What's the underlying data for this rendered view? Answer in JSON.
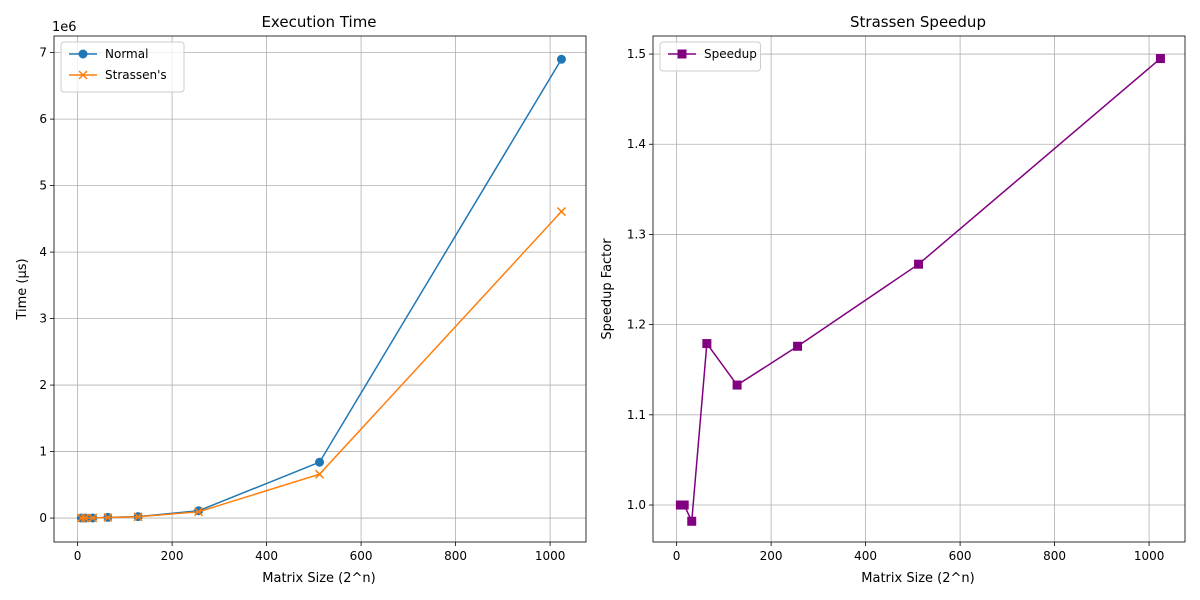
{
  "chart_data": [
    {
      "type": "line",
      "title": "Execution Time",
      "xlabel": "Matrix Size (2^n)",
      "ylabel": "Time (µs)",
      "y_offset_text": "1e6",
      "x": [
        8,
        16,
        32,
        64,
        128,
        256,
        512,
        1024
      ],
      "series": [
        {
          "name": "Normal",
          "marker": "circle",
          "color": "#1f77b4",
          "values": [
            50,
            250,
            1500,
            10000,
            22000,
            110000,
            840000,
            6900000
          ]
        },
        {
          "name": "Strassen's",
          "marker": "x",
          "color": "#ff7f0e",
          "values": [
            50,
            250,
            1500,
            8500,
            19000,
            94000,
            660000,
            4610000
          ]
        }
      ],
      "xlim": [
        -50,
        1076
      ],
      "ylim": [
        -360000,
        7250000
      ],
      "xticks": [
        0,
        200,
        400,
        600,
        800,
        1000
      ],
      "xtick_labels": [
        "0",
        "200",
        "400",
        "600",
        "800",
        "1000"
      ],
      "yticks": [
        0,
        1000000,
        2000000,
        3000000,
        4000000,
        5000000,
        6000000,
        7000000
      ],
      "ytick_labels": [
        "0",
        "1",
        "2",
        "3",
        "4",
        "5",
        "6",
        "7"
      ],
      "grid": true,
      "legend": "upper-left"
    },
    {
      "type": "line",
      "title": "Strassen Speedup",
      "xlabel": "Matrix Size (2^n)",
      "ylabel": "Speedup Factor",
      "x": [
        8,
        16,
        32,
        64,
        128,
        256,
        512,
        1024
      ],
      "series": [
        {
          "name": "Speedup",
          "marker": "square",
          "color": "#800080",
          "values": [
            1.0,
            1.0,
            0.982,
            1.179,
            1.133,
            1.176,
            1.267,
            1.495
          ]
        }
      ],
      "xlim": [
        -50,
        1076
      ],
      "ylim": [
        0.959,
        1.52
      ],
      "xticks": [
        0,
        200,
        400,
        600,
        800,
        1000
      ],
      "xtick_labels": [
        "0",
        "200",
        "400",
        "600",
        "800",
        "1000"
      ],
      "yticks": [
        1.0,
        1.1,
        1.2,
        1.3,
        1.4,
        1.5
      ],
      "ytick_labels": [
        "1.0",
        "1.1",
        "1.2",
        "1.3",
        "1.4",
        "1.5"
      ],
      "grid": true,
      "legend": "upper-left"
    }
  ]
}
